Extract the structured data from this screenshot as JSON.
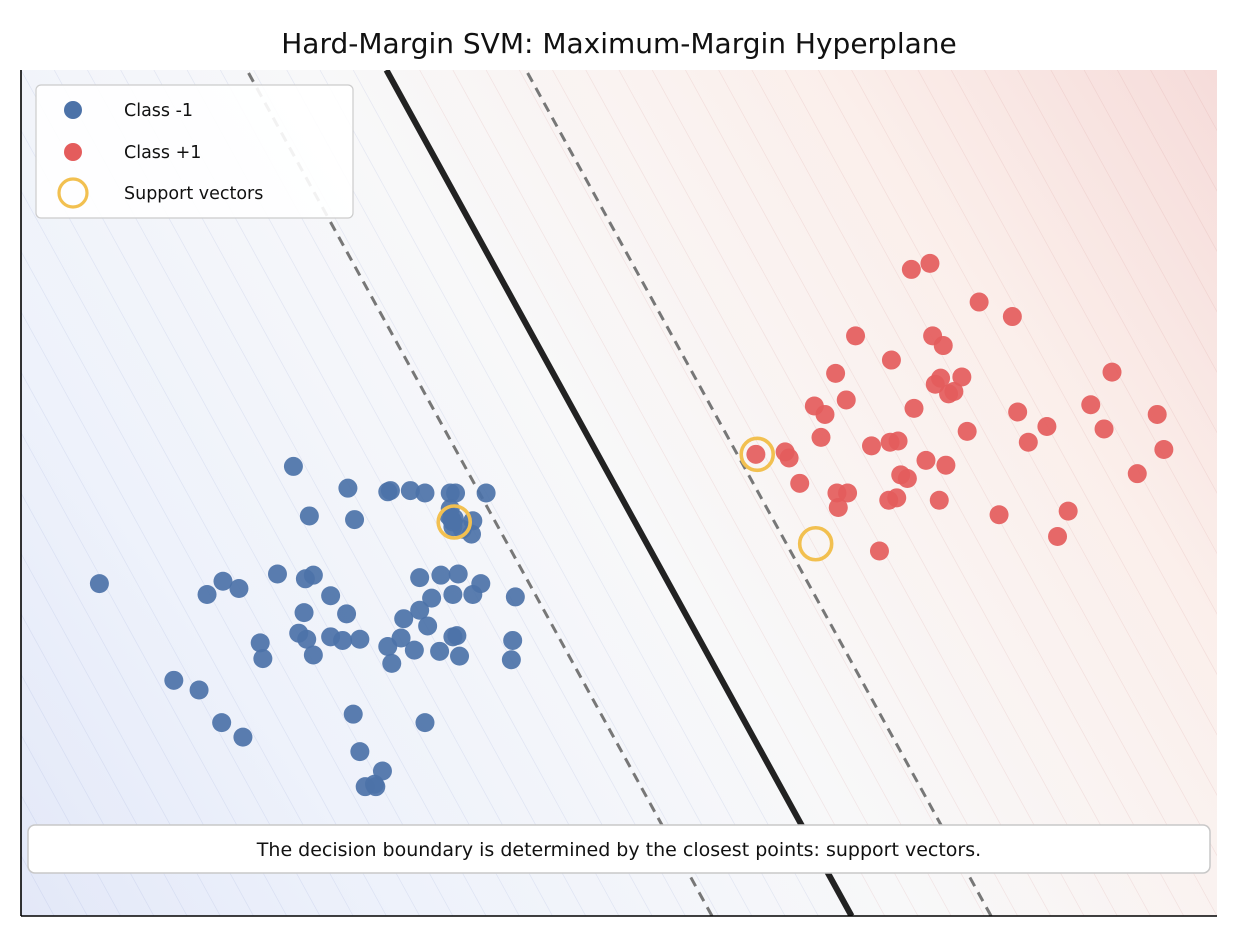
{
  "chart_data": {
    "type": "scatter",
    "title": "Hard-Margin SVM: Maximum-Margin Hyperplane",
    "xlabel": "",
    "ylabel": "",
    "xlim": [
      -4.5,
      4.5
    ],
    "ylim": [
      -3.5,
      3.5
    ],
    "grid": false,
    "legend_position": "top-left",
    "series": [
      {
        "name": "Class -1",
        "color": "#4c72a8",
        "points": [
          [
            -3.91,
            -0.75
          ],
          [
            -3.35,
            -1.55
          ],
          [
            -3.16,
            -1.63
          ],
          [
            -3.1,
            -0.84
          ],
          [
            -2.98,
            -0.73
          ],
          [
            -2.99,
            -1.9
          ],
          [
            -2.86,
            -0.79
          ],
          [
            -2.83,
            -2.02
          ],
          [
            -2.7,
            -1.24
          ],
          [
            -2.68,
            -1.37
          ],
          [
            -2.57,
            -0.67
          ],
          [
            -2.45,
            0.22
          ],
          [
            -2.41,
            -1.16
          ],
          [
            -2.37,
            -0.99
          ],
          [
            -2.36,
            -0.71
          ],
          [
            -2.3,
            -0.68
          ],
          [
            -2.35,
            -1.21
          ],
          [
            -2.3,
            -1.34
          ],
          [
            -2.33,
            -0.19
          ],
          [
            -2.17,
            -0.85
          ],
          [
            -2.17,
            -1.19
          ],
          [
            -2.08,
            -1.22
          ],
          [
            -2.0,
            -1.83
          ],
          [
            -1.99,
            -0.22
          ],
          [
            -2.04,
            0.04
          ],
          [
            -1.95,
            -1.21
          ],
          [
            -1.95,
            -2.14
          ],
          [
            -1.91,
            -2.43
          ],
          [
            -1.84,
            -2.41
          ],
          [
            -1.83,
            -2.43
          ],
          [
            -1.78,
            -2.3
          ],
          [
            -1.72,
            0.02
          ],
          [
            -1.74,
            0.01
          ],
          [
            -1.74,
            -1.27
          ],
          [
            -1.71,
            -1.41
          ],
          [
            -1.62,
            -1.04
          ],
          [
            -1.57,
            0.02
          ],
          [
            -1.5,
            -0.97
          ],
          [
            -1.46,
            -1.9
          ],
          [
            -1.46,
            0.0
          ],
          [
            -1.41,
            -0.87
          ],
          [
            -1.34,
            -0.68
          ],
          [
            -1.22,
            -1.18
          ],
          [
            -1.2,
            -1.35
          ],
          [
            -1.25,
            -1.19
          ],
          [
            -1.25,
            -0.24
          ],
          [
            -1.26,
            -0.22
          ],
          [
            -1.25,
            -0.84
          ],
          [
            -1.1,
            -0.84
          ],
          [
            -1.35,
            -1.31
          ],
          [
            -1.27,
            0.0
          ],
          [
            -1.23,
            0.0
          ],
          [
            -1.24,
            -0.21
          ],
          [
            -1.25,
            -0.28
          ],
          [
            -1.28,
            -0.19
          ],
          [
            -1.1,
            -0.23
          ],
          [
            -1.04,
            -0.75
          ],
          [
            -0.8,
            -1.22
          ],
          [
            -0.81,
            -1.38
          ],
          [
            -1.44,
            -1.1
          ],
          [
            -1.54,
            -1.3
          ],
          [
            -1.64,
            -1.2
          ],
          [
            -1.0,
            0.0
          ],
          [
            -0.78,
            -0.86
          ],
          [
            -1.21,
            -0.67
          ],
          [
            -1.5,
            -0.7
          ],
          [
            -1.18,
            -0.3
          ],
          [
            -1.11,
            -0.34
          ],
          [
            -1.27,
            -0.13
          ],
          [
            -2.05,
            -1.0
          ]
        ]
      },
      {
        "name": "Class +1",
        "color": "#e45c5c",
        "points": [
          [
            1.03,
            0.32
          ],
          [
            1.25,
            0.34
          ],
          [
            1.28,
            0.29
          ],
          [
            1.36,
            0.08
          ],
          [
            1.47,
            0.72
          ],
          [
            1.52,
            0.46
          ],
          [
            1.55,
            0.65
          ],
          [
            1.63,
            0.99
          ],
          [
            1.64,
            0.0
          ],
          [
            1.65,
            -0.12
          ],
          [
            1.71,
            0.77
          ],
          [
            1.72,
            0.0
          ],
          [
            1.78,
            1.3
          ],
          [
            1.9,
            0.39
          ],
          [
            1.96,
            -0.48
          ],
          [
            2.03,
            -0.06
          ],
          [
            2.05,
            1.1
          ],
          [
            2.04,
            0.42
          ],
          [
            2.09,
            -0.04
          ],
          [
            2.12,
            0.15
          ],
          [
            2.1,
            0.43
          ],
          [
            2.2,
            1.85
          ],
          [
            2.22,
            0.7
          ],
          [
            2.31,
            0.27
          ],
          [
            2.34,
            1.9
          ],
          [
            2.36,
            1.3
          ],
          [
            2.38,
            0.9
          ],
          [
            2.41,
            -0.06
          ],
          [
            2.46,
            0.23
          ],
          [
            2.44,
            1.22
          ],
          [
            2.52,
            0.84
          ],
          [
            2.58,
            0.96
          ],
          [
            2.62,
            0.51
          ],
          [
            2.71,
            1.58
          ],
          [
            2.86,
            -0.18
          ],
          [
            2.96,
            1.46
          ],
          [
            3.0,
            0.67
          ],
          [
            3.08,
            0.42
          ],
          [
            3.22,
            0.55
          ],
          [
            3.3,
            -0.36
          ],
          [
            3.38,
            -0.15
          ],
          [
            3.55,
            0.73
          ],
          [
            3.65,
            0.53
          ],
          [
            3.71,
            1.0
          ],
          [
            3.9,
            0.16
          ],
          [
            4.05,
            0.65
          ],
          [
            4.1,
            0.36
          ],
          [
            2.48,
            0.82
          ],
          [
            2.42,
            0.95
          ],
          [
            2.17,
            0.12
          ]
        ]
      }
    ],
    "support_vectors": {
      "name": "Support vectors",
      "color": "#f2c050",
      "points": [
        [
          -1.24,
          -0.24
        ],
        [
          1.04,
          0.32
        ],
        [
          1.48,
          -0.42
        ]
      ]
    },
    "decision_boundary": {
      "w": [
        1.0,
        0.5
      ],
      "b": 0.0
    },
    "margin_offset": 1.05,
    "annotation": "The decision boundary is determined by the closest points: support vectors."
  }
}
